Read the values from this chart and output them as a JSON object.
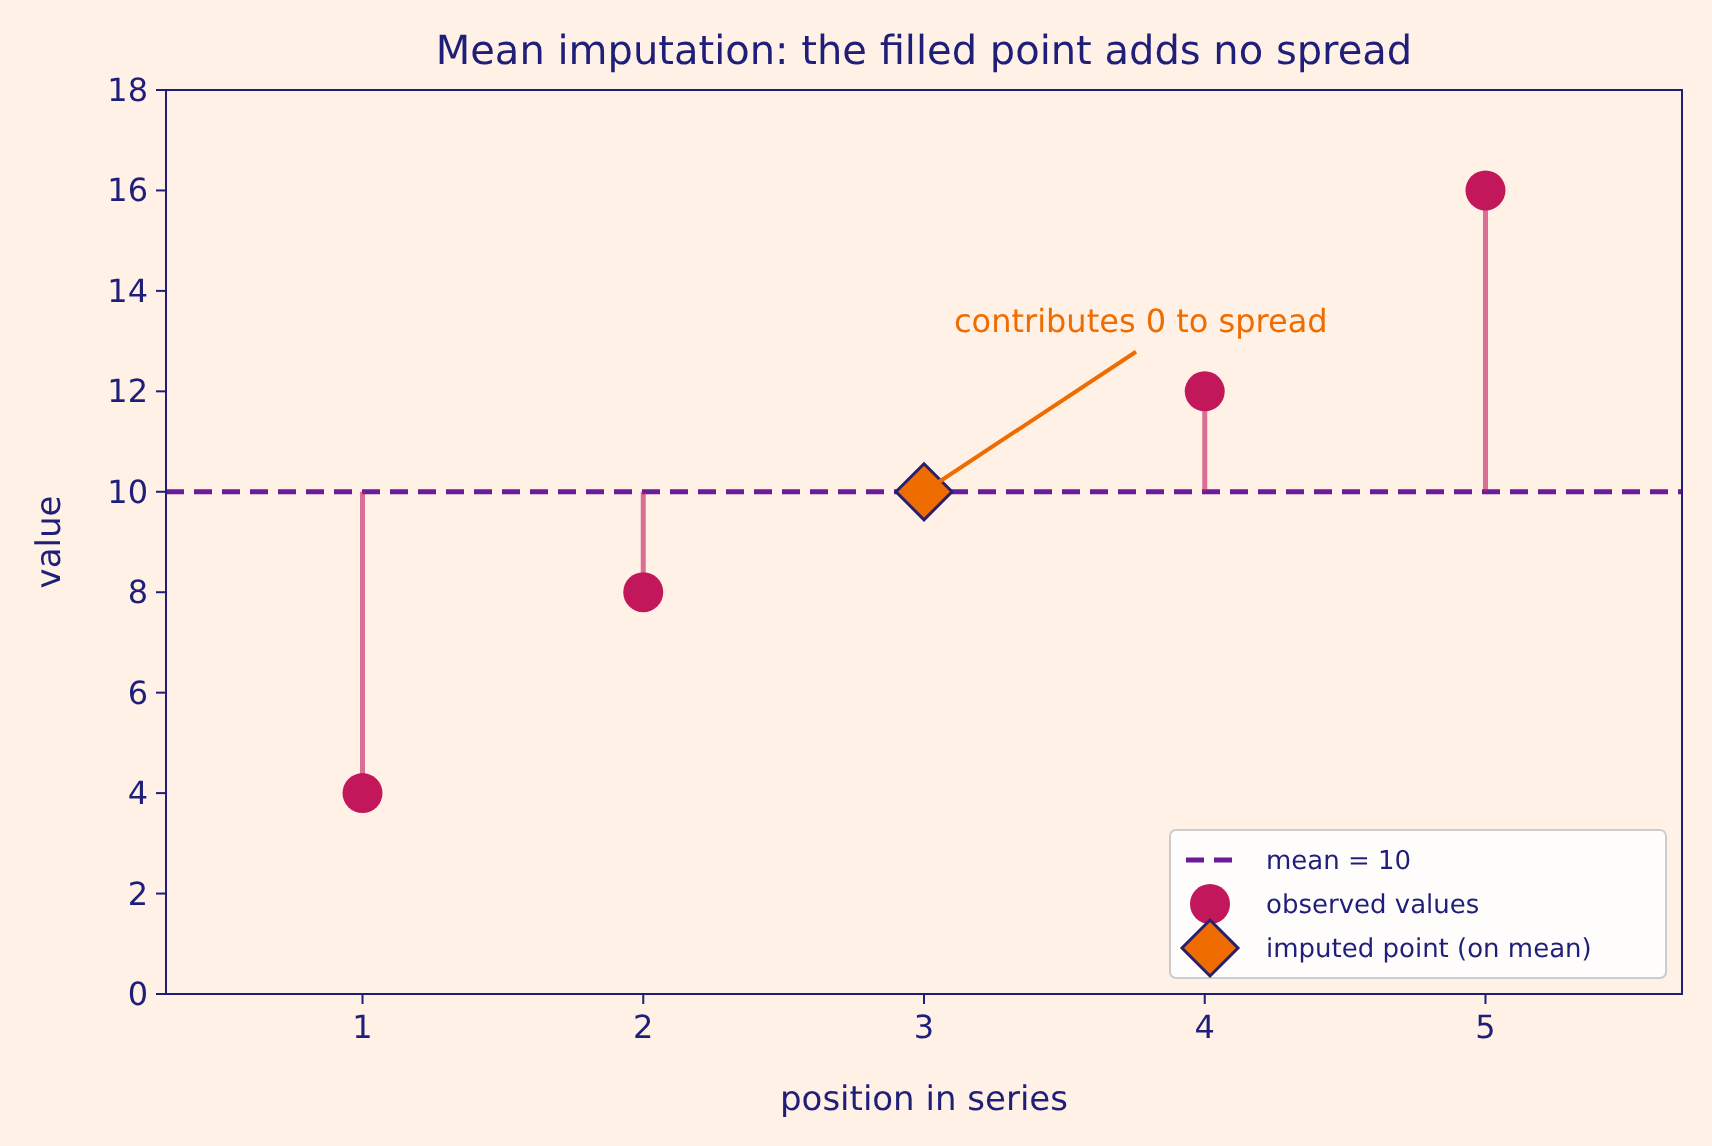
{
  "chart_data": {
    "type": "scatter",
    "title": "Mean imputation: the filled point adds no spread",
    "xlabel": "position in series",
    "ylabel": "value",
    "xlim": [
      0.3,
      5.7
    ],
    "xticks": [
      1,
      2,
      3,
      4,
      5
    ],
    "ylim": [
      0,
      18
    ],
    "yticks": [
      0,
      2,
      4,
      6,
      8,
      10,
      12,
      14,
      16,
      18
    ],
    "grid": false,
    "legend": "bottom right",
    "ref_lines": [
      {
        "axis": "y",
        "value": 10,
        "label": "mean = 10",
        "color": "#6a1b9a",
        "line_style": "dashed"
      }
    ],
    "series": [
      {
        "name": "observed values",
        "color": "#c2185b",
        "marker": "circle",
        "x": [
          1,
          2,
          4,
          5
        ],
        "values": [
          4,
          8,
          12,
          16
        ],
        "errors": [
          [
            4,
            10
          ],
          [
            8,
            10
          ],
          [
            10,
            12
          ],
          [
            10,
            16
          ]
        ]
      },
      {
        "name": "imputed point (on mean)",
        "color": "#ef6c00",
        "marker": "diamond",
        "x": [
          3
        ],
        "values": [
          10
        ]
      }
    ],
    "annotations": [
      {
        "text": "contributes 0 to spread",
        "x": 3,
        "y": 10
      }
    ]
  }
}
